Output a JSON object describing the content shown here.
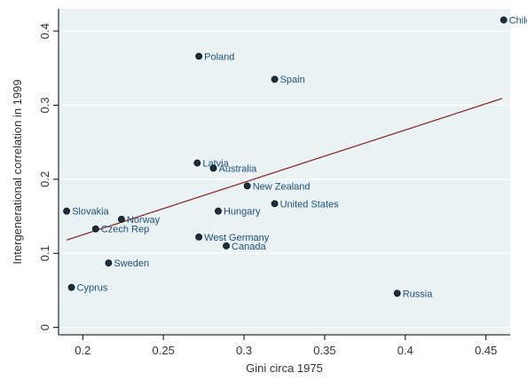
{
  "chart_data": {
    "type": "scatter",
    "title": "",
    "xlabel": "Gini circa 1975",
    "ylabel": "Intergenerational correlation in 1999",
    "xlim": [
      0.185,
      0.465
    ],
    "ylim": [
      -0.01,
      0.43
    ],
    "x_ticks": [
      0.2,
      0.25,
      0.3,
      0.35,
      0.4,
      0.45
    ],
    "x_tick_labels": [
      "0.2",
      "0.25",
      "0.3",
      "0.35",
      "0.4",
      "0.45"
    ],
    "y_ticks": [
      0,
      0.1,
      0.2,
      0.3,
      0.4
    ],
    "y_tick_labels": [
      "0",
      "0.1",
      "0.2",
      "0.3",
      "0.4"
    ],
    "grid": true,
    "legend": "none",
    "points": [
      {
        "label": "Chile",
        "x": 0.461,
        "y": 0.415
      },
      {
        "label": "Poland",
        "x": 0.272,
        "y": 0.366
      },
      {
        "label": "Spain",
        "x": 0.319,
        "y": 0.335
      },
      {
        "label": "Latvia",
        "x": 0.271,
        "y": 0.222
      },
      {
        "label": "Australia",
        "x": 0.281,
        "y": 0.215
      },
      {
        "label": "New Zealand",
        "x": 0.302,
        "y": 0.191
      },
      {
        "label": "United States",
        "x": 0.319,
        "y": 0.167
      },
      {
        "label": "Hungary",
        "x": 0.284,
        "y": 0.157
      },
      {
        "label": "Slovakia",
        "x": 0.19,
        "y": 0.157
      },
      {
        "label": "Norway",
        "x": 0.224,
        "y": 0.146
      },
      {
        "label": "Czech Rep",
        "x": 0.208,
        "y": 0.133
      },
      {
        "label": "West Germany",
        "x": 0.272,
        "y": 0.122
      },
      {
        "label": "Canada",
        "x": 0.289,
        "y": 0.11
      },
      {
        "label": "Sweden",
        "x": 0.216,
        "y": 0.087
      },
      {
        "label": "Cyprus",
        "x": 0.193,
        "y": 0.054
      },
      {
        "label": "Russia",
        "x": 0.395,
        "y": 0.046
      }
    ],
    "fit_line": {
      "x": [
        0.19,
        0.46
      ],
      "y": [
        0.118,
        0.309
      ]
    },
    "colors": {
      "plot_background": "#eaf2f3",
      "outer_background": "#ffffff",
      "gridline": "#ffffff",
      "marker": "#1a2e3b",
      "label_text": "#1c4f7a",
      "fit_line": "#8b2e2e",
      "axis": "#000000"
    }
  }
}
